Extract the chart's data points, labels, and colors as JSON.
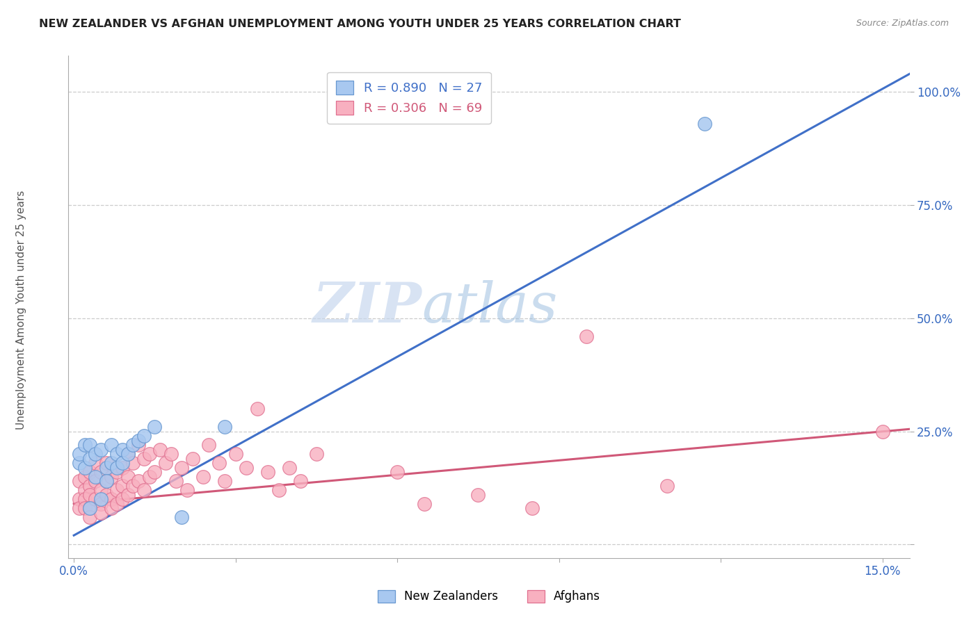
{
  "title": "NEW ZEALANDER VS AFGHAN UNEMPLOYMENT AMONG YOUTH UNDER 25 YEARS CORRELATION CHART",
  "source": "Source: ZipAtlas.com",
  "xmin": -0.001,
  "xmax": 0.155,
  "ymin": -0.03,
  "ymax": 1.08,
  "nz_color": "#A8C8F0",
  "nz_edge_color": "#6898D0",
  "afghan_color": "#F8B0C0",
  "afghan_edge_color": "#E07090",
  "nz_line_color": "#4070C8",
  "afghan_line_color": "#D05878",
  "nz_R": 0.89,
  "nz_N": 27,
  "afghan_R": 0.306,
  "afghan_N": 69,
  "watermark_zip": "ZIP",
  "watermark_atlas": "atlas",
  "watermark_color": "#C8D8EE",
  "nz_line_x0": 0.0,
  "nz_line_y0": 0.02,
  "nz_line_x1": 0.155,
  "nz_line_y1": 1.04,
  "afghan_line_x0": 0.0,
  "afghan_line_y0": 0.09,
  "afghan_line_x1": 0.155,
  "afghan_line_y1": 0.255,
  "nz_scatter_x": [
    0.001,
    0.001,
    0.002,
    0.002,
    0.003,
    0.003,
    0.003,
    0.004,
    0.004,
    0.005,
    0.005,
    0.006,
    0.006,
    0.007,
    0.007,
    0.008,
    0.008,
    0.009,
    0.009,
    0.01,
    0.011,
    0.012,
    0.013,
    0.015,
    0.02,
    0.028,
    0.117
  ],
  "nz_scatter_y": [
    0.18,
    0.2,
    0.22,
    0.17,
    0.19,
    0.22,
    0.08,
    0.15,
    0.2,
    0.21,
    0.1,
    0.17,
    0.14,
    0.18,
    0.22,
    0.2,
    0.17,
    0.21,
    0.18,
    0.2,
    0.22,
    0.23,
    0.24,
    0.26,
    0.06,
    0.26,
    0.93
  ],
  "afghan_scatter_x": [
    0.001,
    0.001,
    0.001,
    0.002,
    0.002,
    0.002,
    0.002,
    0.003,
    0.003,
    0.003,
    0.003,
    0.003,
    0.004,
    0.004,
    0.004,
    0.005,
    0.005,
    0.005,
    0.005,
    0.006,
    0.006,
    0.006,
    0.007,
    0.007,
    0.007,
    0.008,
    0.008,
    0.008,
    0.009,
    0.009,
    0.009,
    0.01,
    0.01,
    0.01,
    0.011,
    0.011,
    0.012,
    0.012,
    0.013,
    0.013,
    0.014,
    0.014,
    0.015,
    0.016,
    0.017,
    0.018,
    0.019,
    0.02,
    0.021,
    0.022,
    0.024,
    0.025,
    0.027,
    0.028,
    0.03,
    0.032,
    0.034,
    0.036,
    0.038,
    0.04,
    0.042,
    0.045,
    0.06,
    0.065,
    0.075,
    0.085,
    0.095,
    0.11,
    0.15
  ],
  "afghan_scatter_y": [
    0.1,
    0.14,
    0.08,
    0.12,
    0.15,
    0.1,
    0.08,
    0.13,
    0.16,
    0.11,
    0.08,
    0.06,
    0.14,
    0.18,
    0.1,
    0.12,
    0.16,
    0.09,
    0.07,
    0.14,
    0.11,
    0.18,
    0.15,
    0.1,
    0.08,
    0.16,
    0.12,
    0.09,
    0.17,
    0.13,
    0.1,
    0.15,
    0.2,
    0.11,
    0.18,
    0.13,
    0.22,
    0.14,
    0.19,
    0.12,
    0.2,
    0.15,
    0.16,
    0.21,
    0.18,
    0.2,
    0.14,
    0.17,
    0.12,
    0.19,
    0.15,
    0.22,
    0.18,
    0.14,
    0.2,
    0.17,
    0.3,
    0.16,
    0.12,
    0.17,
    0.14,
    0.2,
    0.16,
    0.09,
    0.11,
    0.08,
    0.46,
    0.13,
    0.25
  ]
}
